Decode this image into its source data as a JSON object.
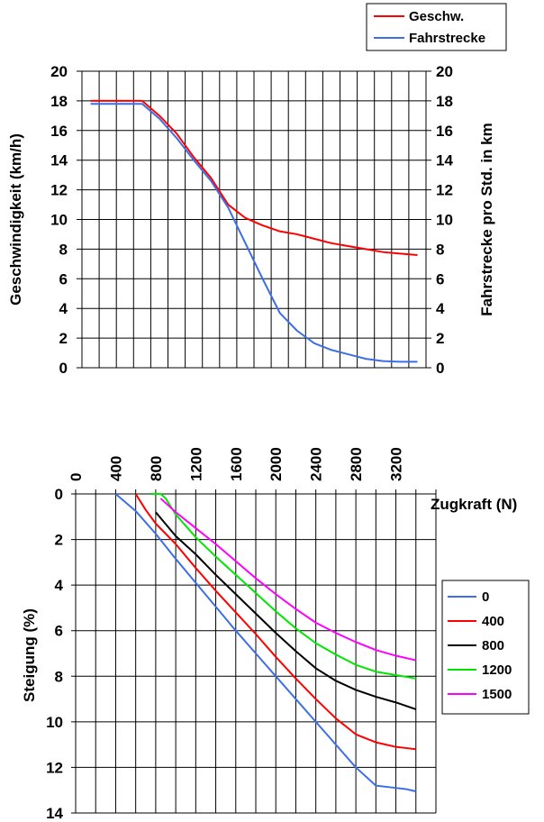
{
  "chart_data": [
    {
      "type": "line",
      "title": "",
      "xlabel": "",
      "ylabel": "Geschwindigkeit (km/h)",
      "y2label": "Fahrstrecke pro Std. in km",
      "ylim": [
        0,
        20
      ],
      "y2lim": [
        0,
        20
      ],
      "yticks": [
        "0",
        "2",
        "4",
        "6",
        "8",
        "10",
        "12",
        "14",
        "16",
        "18",
        "20"
      ],
      "y2ticks": [
        "0",
        "2",
        "4",
        "6",
        "8",
        "10",
        "12",
        "14",
        "16",
        "18",
        "20"
      ],
      "x_count": 20,
      "grid": true,
      "legend_position": "top-right",
      "series": [
        {
          "name": "Geschw.",
          "color": "#ff0000",
          "x": [
            1,
            2,
            3,
            4,
            5,
            6,
            7,
            8,
            9,
            10,
            11,
            12,
            13,
            14,
            15,
            16,
            17,
            18,
            19,
            20
          ],
          "values": [
            18,
            18,
            18,
            18,
            17,
            15.8,
            14.2,
            12.8,
            11,
            10.1,
            9.6,
            9.2,
            9.0,
            8.7,
            8.4,
            8.2,
            8.0,
            7.8,
            7.7,
            7.6
          ]
        },
        {
          "name": "Fahrstrecke",
          "color": "#3c6ee6",
          "x": [
            1,
            2,
            3,
            4,
            5,
            6,
            7,
            8,
            9,
            10,
            11,
            12,
            13,
            14,
            15,
            16,
            17,
            18,
            19,
            20
          ],
          "values": [
            17.8,
            17.8,
            17.8,
            17.8,
            16.8,
            15.5,
            14,
            12.6,
            10.8,
            8.4,
            6,
            3.7,
            2.5,
            1.65,
            1.2,
            0.9,
            0.6,
            0.45,
            0.4,
            0.4
          ]
        }
      ]
    },
    {
      "type": "line",
      "title": "",
      "xlabel": "Zugkraft (N)",
      "ylabel": "Steigung (%)",
      "xlim": [
        0,
        3600
      ],
      "xticks": [
        "0",
        "400",
        "800",
        "1200",
        "1600",
        "2000",
        "2400",
        "2800",
        "3200"
      ],
      "ylim": [
        0,
        14
      ],
      "yticks": [
        "0",
        "2",
        "4",
        "6",
        "8",
        "10",
        "12",
        "14"
      ],
      "y_inverted": true,
      "x_axis_position": "top",
      "grid": true,
      "legend_position": "right",
      "series": [
        {
          "name": "0",
          "color": "#3c6ee6",
          "x": [
            400,
            600,
            800,
            1000,
            1200,
            1400,
            1600,
            1800,
            2000,
            2200,
            2400,
            2600,
            2800,
            3000,
            3200,
            3300,
            3350,
            3400
          ],
          "values": [
            0,
            0.75,
            1.75,
            2.85,
            3.9,
            4.95,
            6.0,
            7.0,
            8.0,
            9.0,
            10.0,
            11.0,
            12.0,
            12.8,
            12.9,
            12.95,
            13.0,
            13.05
          ]
        },
        {
          "name": "400",
          "color": "#ff0000",
          "x": [
            600,
            700,
            800,
            1000,
            1200,
            1400,
            1600,
            1800,
            2000,
            2200,
            2400,
            2600,
            2800,
            3000,
            3100,
            3200,
            3300,
            3400
          ],
          "values": [
            0,
            0.7,
            1.3,
            2.2,
            3.25,
            4.25,
            5.2,
            6.15,
            7.15,
            8.1,
            9.0,
            9.85,
            10.55,
            10.9,
            11.0,
            11.1,
            11.15,
            11.2
          ]
        },
        {
          "name": "800",
          "color": "#000000",
          "x": [
            800,
            1000,
            1200,
            1400,
            1600,
            1800,
            2000,
            2200,
            2400,
            2600,
            2800,
            3000,
            3200,
            3400
          ],
          "values": [
            0.8,
            1.85,
            2.65,
            3.55,
            4.4,
            5.25,
            6.1,
            6.9,
            7.65,
            8.2,
            8.6,
            8.9,
            9.15,
            9.45
          ]
        },
        {
          "name": "1200",
          "color": "#00e600",
          "x": [
            750,
            850,
            900,
            1000,
            1200,
            1400,
            1600,
            1800,
            2000,
            2200,
            2400,
            2600,
            2800,
            3000,
            3200,
            3400
          ],
          "values": [
            0,
            0,
            0.2,
            0.9,
            1.9,
            2.75,
            3.55,
            4.35,
            5.15,
            5.9,
            6.55,
            7.05,
            7.5,
            7.8,
            7.95,
            8.1
          ]
        },
        {
          "name": "1500",
          "color": "#ff00ff",
          "x": [
            850,
            1000,
            1200,
            1400,
            1600,
            1800,
            2000,
            2200,
            2400,
            2600,
            2800,
            3000,
            3200,
            3400
          ],
          "values": [
            0.2,
            0.8,
            1.5,
            2.2,
            2.95,
            3.7,
            4.4,
            5.05,
            5.65,
            6.1,
            6.5,
            6.85,
            7.1,
            7.3
          ]
        }
      ]
    }
  ]
}
